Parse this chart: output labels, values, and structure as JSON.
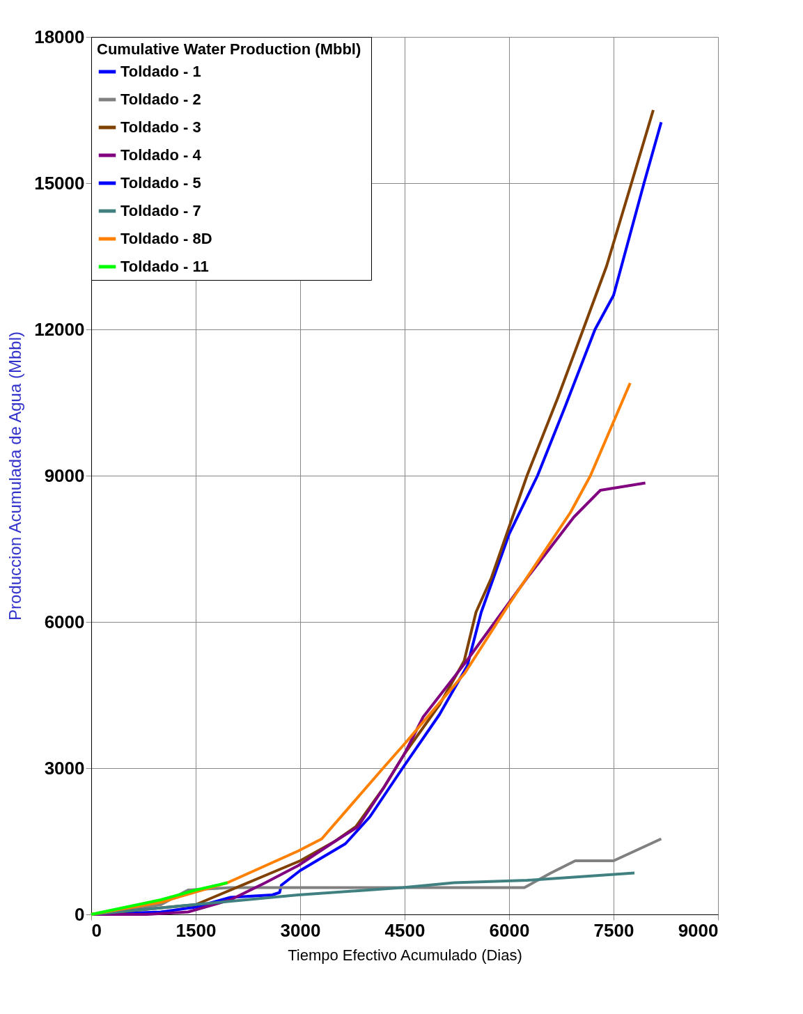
{
  "chart_data": {
    "type": "line",
    "xlabel": "Tiempo Efectivo Acumulado (Dias)",
    "ylabel": "Produccion Acumulada de Agua (Mbbl)",
    "legend_title": "Cumulative Water Production  (Mbbl)",
    "xlim": [
      0,
      9000
    ],
    "xticks": [
      0,
      1500,
      3000,
      4500,
      6000,
      7500,
      9000
    ],
    "ylim": [
      0,
      18000
    ],
    "yticks": [
      0,
      3000,
      6000,
      9000,
      12000,
      15000,
      18000
    ],
    "grid": true,
    "legend": "top left",
    "marker": "none",
    "series": [
      {
        "name": "Toldado - 1",
        "color": "#0000ff",
        "x": [
          0,
          1000,
          1500,
          2000,
          2600,
          2705,
          2730,
          3000,
          3650,
          4000,
          4470,
          5000,
          5400,
          5600,
          6000,
          6408,
          6800,
          7234,
          7500,
          7937,
          8184
        ],
        "values": [
          0,
          50,
          150,
          350,
          400,
          450,
          600,
          900,
          1450,
          2000,
          3000,
          4100,
          5100,
          6200,
          7800,
          9000,
          10400,
          12000,
          12700,
          15000,
          16250
        ]
      },
      {
        "name": "Toldado - 2",
        "color": "#808080",
        "x": [
          0,
          1000,
          1390,
          2000,
          4000,
          6220,
          6600,
          6950,
          7500,
          8184
        ],
        "values": [
          0,
          200,
          500,
          550,
          550,
          550,
          850,
          1100,
          1100,
          1550
        ]
      },
      {
        "name": "Toldado - 3",
        "color": "#804000",
        "x": [
          0,
          1500,
          2000,
          2500,
          3000,
          3500,
          3800,
          4200,
          4500,
          5000,
          5355,
          5525,
          5745,
          6257,
          6700,
          7064,
          7400,
          7757,
          8070
        ],
        "values": [
          0,
          200,
          500,
          800,
          1100,
          1500,
          1800,
          2600,
          3300,
          4300,
          5200,
          6200,
          6900,
          9000,
          10600,
          12000,
          13300,
          15000,
          16500
        ]
      },
      {
        "name": "Toldado - 4",
        "color": "#800080",
        "x": [
          0,
          800,
          1390,
          2000,
          2500,
          2970,
          3500,
          3830,
          4200,
          4500,
          4766,
          5364,
          6257,
          6930,
          7310,
          7956
        ],
        "values": [
          0,
          0,
          50,
          300,
          650,
          1000,
          1500,
          1800,
          2600,
          3300,
          4050,
          5150,
          6900,
          8150,
          8700,
          8850
        ]
      },
      {
        "name": "Toldado - 5",
        "color": "#0000ff"
      },
      {
        "name": "Toldado - 7",
        "color": "#408080",
        "x": [
          0,
          1480,
          2970,
          4470,
          5210,
          6257,
          7800
        ],
        "values": [
          0,
          200,
          400,
          550,
          650,
          700,
          850
        ]
      },
      {
        "name": "Toldado - 8D",
        "color": "#ff8000",
        "x": [
          0,
          1000,
          1956,
          2970,
          3310,
          4160,
          4500,
          5364,
          5970,
          6883,
          7168,
          7738
        ],
        "values": [
          0,
          250,
          650,
          1300,
          1550,
          2950,
          3500,
          4950,
          6300,
          8250,
          9000,
          10900
        ]
      },
      {
        "name": "Toldado - 11",
        "color": "#00ff00",
        "x": [
          0,
          500,
          1000,
          1500,
          1956
        ],
        "values": [
          0,
          150,
          300,
          500,
          650
        ]
      }
    ]
  }
}
